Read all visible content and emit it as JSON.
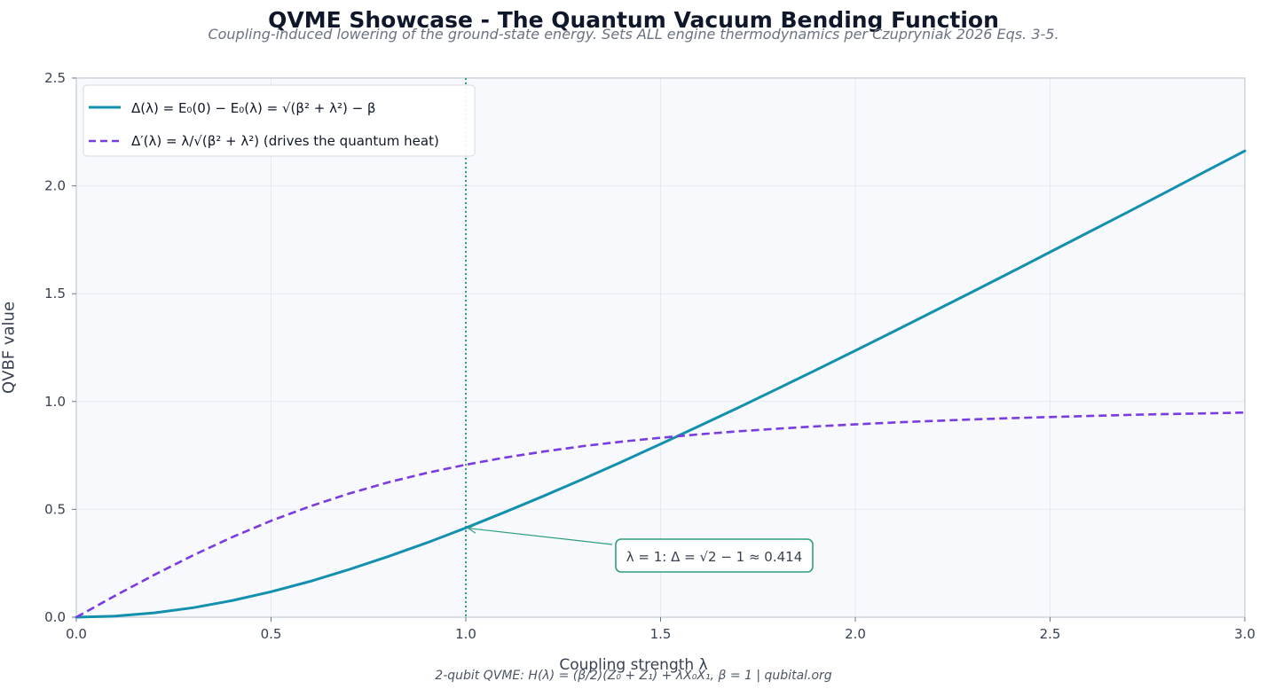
{
  "title": "QVME Showcase - The Quantum Vacuum Bending Function",
  "subtitle": "Coupling-induced lowering of the ground-state energy. Sets ALL engine thermodynamics per Czupryniak 2026 Eqs. 3-5.",
  "footer": "2-qubit QVME:  H(λ) = (β/2)(Z₀ + Z₁) + λX₀X₁,  β = 1  |  qubital.org",
  "colors": {
    "series1": "#1390ae",
    "series2": "#7a3be0",
    "marker": "#2e9e7e",
    "plot_bg": "#f7f9fc",
    "grid": "#e7ebf0",
    "frame": "#cdd5df"
  },
  "chart_data": {
    "type": "line",
    "title": "QVME Showcase - The Quantum Vacuum Bending Function",
    "xlabel": "Coupling strength  λ",
    "ylabel": "QVBF value",
    "xlim": [
      0,
      3
    ],
    "ylim": [
      0,
      2.5
    ],
    "xticks": [
      "0.0",
      "0.5",
      "1.0",
      "1.5",
      "2.0",
      "2.5",
      "3.0"
    ],
    "yticks": [
      "0.0",
      "0.5",
      "1.0",
      "1.5",
      "2.0",
      "2.5"
    ],
    "grid": true,
    "legend_position": "top-left",
    "x": [
      0,
      0.1,
      0.2,
      0.3,
      0.4,
      0.5,
      0.6,
      0.7,
      0.8,
      0.9,
      1.0,
      1.1,
      1.2,
      1.3,
      1.4,
      1.5,
      1.6,
      1.7,
      1.8,
      1.9,
      2.0,
      2.1,
      2.2,
      2.3,
      2.4,
      2.5,
      2.6,
      2.7,
      2.8,
      2.9,
      3.0
    ],
    "series": [
      {
        "name": "Δ(λ) = E₀(0) − E₀(λ) = √(β² + λ²) − β",
        "style": "solid",
        "values": [
          0.0,
          0.005,
          0.02,
          0.044,
          0.077,
          0.118,
          0.166,
          0.221,
          0.281,
          0.345,
          0.414,
          0.487,
          0.562,
          0.64,
          0.72,
          0.803,
          0.887,
          0.972,
          1.059,
          1.147,
          1.236,
          1.326,
          1.417,
          1.508,
          1.6,
          1.693,
          1.786,
          1.879,
          1.973,
          2.068,
          2.162
        ]
      },
      {
        "name": "Δ′(λ) = λ/√(β² + λ²)  (drives the quantum heat)",
        "style": "dashed",
        "values": [
          0.0,
          0.1,
          0.196,
          0.287,
          0.371,
          0.447,
          0.514,
          0.573,
          0.625,
          0.669,
          0.707,
          0.74,
          0.768,
          0.793,
          0.814,
          0.832,
          0.848,
          0.862,
          0.874,
          0.885,
          0.894,
          0.903,
          0.91,
          0.917,
          0.923,
          0.928,
          0.933,
          0.938,
          0.942,
          0.945,
          0.949
        ]
      }
    ],
    "vline": {
      "x": 1.0
    },
    "annotation": {
      "text": "λ = 1: Δ = √2 − 1 ≈ 0.414",
      "x": 1.0,
      "y": 0.414
    }
  }
}
